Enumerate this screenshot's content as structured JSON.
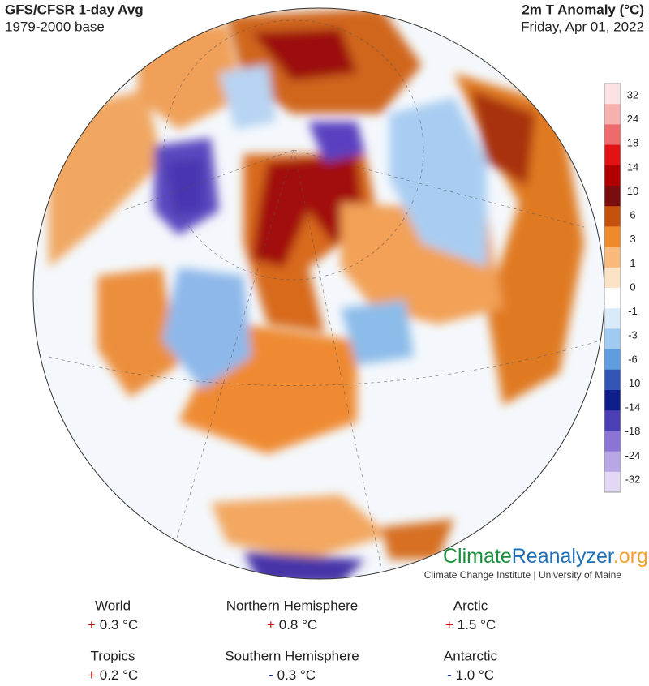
{
  "header": {
    "title_left": "GFS/CFSR 1-day Avg",
    "subtitle_left": "1979-2000 base",
    "title_right": "2m T Anomaly (°C)",
    "date": "Friday, Apr 01, 2022"
  },
  "colorbar": {
    "labels": [
      32,
      24,
      18,
      14,
      10,
      6,
      3,
      1,
      0,
      -1,
      -3,
      -6,
      -10,
      -14,
      -18,
      -24,
      -32
    ],
    "colors": [
      "#fbe3e3",
      "#f7b0b0",
      "#ef6a6a",
      "#e11414",
      "#b00000",
      "#7a0e0e",
      "#c5520c",
      "#ee8a2a",
      "#f8b97a",
      "#fde3c6",
      "#ffffff",
      "#d9ebfb",
      "#9fcaf1",
      "#5d9de0",
      "#3455b8",
      "#0e1e8a",
      "#4a3fb5",
      "#8a74d6",
      "#b9a6e6",
      "#e2d8f3"
    ]
  },
  "branding": {
    "name_part_1": "Climate",
    "name_part_2": "Reanalyzer",
    "name_part_3": ".org",
    "institute": "Climate Change Institute | University of Maine"
  },
  "stats": [
    {
      "label": "World",
      "sign": "+",
      "value": "0.3 °C"
    },
    {
      "label": "Northern Hemisphere",
      "sign": "+",
      "value": "0.8 °C"
    },
    {
      "label": "Arctic",
      "sign": "+",
      "value": "1.5 °C"
    },
    {
      "label": "Tropics",
      "sign": "+",
      "value": "0.2 °C"
    },
    {
      "label": "Southern Hemisphere",
      "sign": "-",
      "value": "0.3 °C"
    },
    {
      "label": "Antarctic",
      "sign": "-",
      "value": "1.0 °C"
    }
  ]
}
